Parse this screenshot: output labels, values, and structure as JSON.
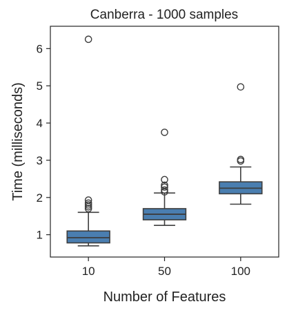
{
  "chart_data": {
    "type": "box",
    "title": "Canberra - 1000 samples",
    "xlabel": "Number of Features",
    "ylabel": "Time (milliseconds)",
    "categories": [
      "10",
      "50",
      "100"
    ],
    "yticks": [
      1,
      2,
      3,
      4,
      5,
      6
    ],
    "ylim": [
      0.4,
      6.6
    ],
    "grid": false,
    "box_color": "#4a7eb0",
    "line_color": "#3d3d3d",
    "boxes": [
      {
        "category": "10",
        "whisker_low": 0.7,
        "q1": 0.78,
        "median": 0.92,
        "q3": 1.1,
        "whisker_high": 1.6,
        "outliers": [
          1.7,
          1.75,
          1.8,
          1.85,
          1.93,
          6.25
        ]
      },
      {
        "category": "50",
        "whisker_low": 1.25,
        "q1": 1.4,
        "median": 1.55,
        "q3": 1.7,
        "whisker_high": 2.12,
        "outliers": [
          2.15,
          2.2,
          2.28,
          2.33,
          2.48,
          3.75
        ]
      },
      {
        "category": "100",
        "whisker_low": 1.82,
        "q1": 2.1,
        "median": 2.25,
        "q3": 2.42,
        "whisker_high": 2.82,
        "outliers": [
          2.98,
          3.02,
          4.97
        ]
      }
    ]
  }
}
